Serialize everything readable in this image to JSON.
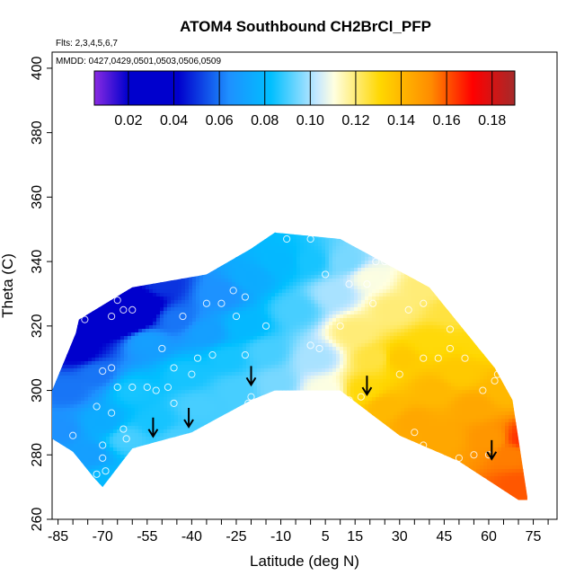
{
  "chart_data": {
    "type": "heatmap",
    "title": "ATOM4 Southbound CH2BrCl_PFP",
    "annotations": {
      "flights": "Flts: 2,3,4,5,6,7",
      "dates": "MMDD: 0427,0429,0501,0503,0506,0509"
    },
    "xlabel": "Latitude (deg N)",
    "ylabel": "Theta (C)",
    "xlim": [
      -87,
      83
    ],
    "ylim": [
      260,
      405
    ],
    "x_ticks": [
      -85,
      -70,
      -55,
      -40,
      -25,
      -10,
      5,
      15,
      30,
      45,
      60,
      75
    ],
    "x_minor_step": 5,
    "y_ticks": [
      260,
      280,
      300,
      320,
      340,
      360,
      380,
      400
    ],
    "colorbar": {
      "min": 0.005,
      "max": 0.19,
      "ticks": [
        0.02,
        0.04,
        0.06,
        0.08,
        0.1,
        0.12,
        0.14,
        0.16,
        0.18
      ],
      "tick_labels": [
        "0.02",
        "0.04",
        "0.06",
        "0.08",
        "0.10",
        "0.12",
        "0.14",
        "0.16",
        "0.18"
      ],
      "colors": [
        "#8a2be2",
        "#0000cd",
        "#0000cd",
        "#1e90ff",
        "#00bfff",
        "#c6e8ff",
        "#ffffe0",
        "#ffd700",
        "#ff8c00",
        "#ff0000",
        "#a52a2a"
      ],
      "color_stops": [
        0.0,
        0.08,
        0.2,
        0.32,
        0.42,
        0.53,
        0.57,
        0.68,
        0.8,
        0.9,
        1.0
      ]
    },
    "field_points": [
      {
        "lat": -80,
        "theta": 322,
        "value": 0.03
      },
      {
        "lat": -78,
        "theta": 312,
        "value": 0.04
      },
      {
        "lat": -82,
        "theta": 300,
        "value": 0.06
      },
      {
        "lat": -85,
        "theta": 288,
        "value": 0.065
      },
      {
        "lat": -75,
        "theta": 280,
        "value": 0.07
      },
      {
        "lat": -70,
        "theta": 272,
        "value": 0.08
      },
      {
        "lat": -70,
        "theta": 290,
        "value": 0.075
      },
      {
        "lat": -72,
        "theta": 305,
        "value": 0.06
      },
      {
        "lat": -70,
        "theta": 325,
        "value": 0.03
      },
      {
        "lat": -65,
        "theta": 330,
        "value": 0.04
      },
      {
        "lat": -62,
        "theta": 322,
        "value": 0.02
      },
      {
        "lat": -58,
        "theta": 326,
        "value": 0.02
      },
      {
        "lat": -55,
        "theta": 315,
        "value": 0.07
      },
      {
        "lat": -60,
        "theta": 300,
        "value": 0.085
      },
      {
        "lat": -62,
        "theta": 285,
        "value": 0.09
      },
      {
        "lat": -52,
        "theta": 290,
        "value": 0.085
      },
      {
        "lat": -45,
        "theta": 285,
        "value": 0.09
      },
      {
        "lat": -50,
        "theta": 333,
        "value": 0.05
      },
      {
        "lat": -45,
        "theta": 322,
        "value": 0.06
      },
      {
        "lat": -42,
        "theta": 305,
        "value": 0.085
      },
      {
        "lat": -38,
        "theta": 295,
        "value": 0.09
      },
      {
        "lat": -35,
        "theta": 318,
        "value": 0.07
      },
      {
        "lat": -30,
        "theta": 330,
        "value": 0.065
      },
      {
        "lat": -28,
        "theta": 310,
        "value": 0.085
      },
      {
        "lat": -25,
        "theta": 300,
        "value": 0.09
      },
      {
        "lat": -22,
        "theta": 320,
        "value": 0.08
      },
      {
        "lat": -20,
        "theta": 335,
        "value": 0.075
      },
      {
        "lat": -15,
        "theta": 312,
        "value": 0.09
      },
      {
        "lat": -12,
        "theta": 302,
        "value": 0.095
      },
      {
        "lat": -10,
        "theta": 340,
        "value": 0.08
      },
      {
        "lat": -5,
        "theta": 325,
        "value": 0.09
      },
      {
        "lat": 0,
        "theta": 340,
        "value": 0.085
      },
      {
        "lat": 2,
        "theta": 310,
        "value": 0.1
      },
      {
        "lat": 5,
        "theta": 300,
        "value": 0.11
      },
      {
        "lat": 8,
        "theta": 330,
        "value": 0.1
      },
      {
        "lat": 12,
        "theta": 340,
        "value": 0.095
      },
      {
        "lat": 15,
        "theta": 318,
        "value": 0.12
      },
      {
        "lat": 18,
        "theta": 300,
        "value": 0.13
      },
      {
        "lat": 20,
        "theta": 335,
        "value": 0.11
      },
      {
        "lat": 22,
        "theta": 310,
        "value": 0.125
      },
      {
        "lat": 25,
        "theta": 295,
        "value": 0.14
      },
      {
        "lat": 28,
        "theta": 325,
        "value": 0.12
      },
      {
        "lat": 30,
        "theta": 310,
        "value": 0.135
      },
      {
        "lat": 35,
        "theta": 290,
        "value": 0.145
      },
      {
        "lat": 38,
        "theta": 332,
        "value": 0.12
      },
      {
        "lat": 40,
        "theta": 315,
        "value": 0.13
      },
      {
        "lat": 42,
        "theta": 300,
        "value": 0.14
      },
      {
        "lat": 45,
        "theta": 285,
        "value": 0.145
      },
      {
        "lat": 48,
        "theta": 325,
        "value": 0.125
      },
      {
        "lat": 50,
        "theta": 305,
        "value": 0.135
      },
      {
        "lat": 55,
        "theta": 295,
        "value": 0.145
      },
      {
        "lat": 58,
        "theta": 315,
        "value": 0.13
      },
      {
        "lat": 60,
        "theta": 285,
        "value": 0.15
      },
      {
        "lat": 65,
        "theta": 300,
        "value": 0.14
      },
      {
        "lat": 68,
        "theta": 280,
        "value": 0.155
      },
      {
        "lat": 72,
        "theta": 285,
        "value": 0.165
      },
      {
        "lat": 70,
        "theta": 270,
        "value": 0.16
      }
    ],
    "samples": [
      {
        "lat": -80,
        "theta": 321
      },
      {
        "lat": -76,
        "theta": 322
      },
      {
        "lat": -67,
        "theta": 323
      },
      {
        "lat": -63,
        "theta": 325
      },
      {
        "lat": -60,
        "theta": 325
      },
      {
        "lat": -68,
        "theta": 331
      },
      {
        "lat": -65,
        "theta": 328
      },
      {
        "lat": -52,
        "theta": 337
      },
      {
        "lat": -70,
        "theta": 306
      },
      {
        "lat": -67,
        "theta": 307
      },
      {
        "lat": -60,
        "theta": 301
      },
      {
        "lat": -65,
        "theta": 301
      },
      {
        "lat": -72,
        "theta": 295
      },
      {
        "lat": -67,
        "theta": 293
      },
      {
        "lat": -63,
        "theta": 288
      },
      {
        "lat": -80,
        "theta": 286
      },
      {
        "lat": -70,
        "theta": 283
      },
      {
        "lat": -70,
        "theta": 279
      },
      {
        "lat": -72,
        "theta": 274
      },
      {
        "lat": -69,
        "theta": 275
      },
      {
        "lat": -62,
        "theta": 285
      },
      {
        "lat": -56,
        "theta": 281
      },
      {
        "lat": -50,
        "theta": 283
      },
      {
        "lat": -55,
        "theta": 301
      },
      {
        "lat": -52,
        "theta": 300
      },
      {
        "lat": -48,
        "theta": 301
      },
      {
        "lat": -46,
        "theta": 296
      },
      {
        "lat": -50,
        "theta": 313
      },
      {
        "lat": -46,
        "theta": 307
      },
      {
        "lat": -40,
        "theta": 305
      },
      {
        "lat": -43,
        "theta": 323
      },
      {
        "lat": -35,
        "theta": 327
      },
      {
        "lat": -30,
        "theta": 327
      },
      {
        "lat": -26,
        "theta": 331
      },
      {
        "lat": -25,
        "theta": 323
      },
      {
        "lat": -22,
        "theta": 329
      },
      {
        "lat": -38,
        "theta": 310
      },
      {
        "lat": -33,
        "theta": 311
      },
      {
        "lat": -22,
        "theta": 311
      },
      {
        "lat": -21,
        "theta": 296
      },
      {
        "lat": -20,
        "theta": 298
      },
      {
        "lat": -12,
        "theta": 298
      },
      {
        "lat": -15,
        "theta": 320
      },
      {
        "lat": -8,
        "theta": 347
      },
      {
        "lat": 0,
        "theta": 347
      },
      {
        "lat": 5,
        "theta": 336
      },
      {
        "lat": 13,
        "theta": 333
      },
      {
        "lat": 10,
        "theta": 320
      },
      {
        "lat": 0,
        "theta": 314
      },
      {
        "lat": 3,
        "theta": 313
      },
      {
        "lat": 18,
        "theta": 345
      },
      {
        "lat": 22,
        "theta": 340
      },
      {
        "lat": 25,
        "theta": 340
      },
      {
        "lat": 19,
        "theta": 333
      },
      {
        "lat": 21,
        "theta": 327
      },
      {
        "lat": 13,
        "theta": 297
      },
      {
        "lat": 17,
        "theta": 298
      },
      {
        "lat": 35,
        "theta": 340
      },
      {
        "lat": 33,
        "theta": 325
      },
      {
        "lat": 38,
        "theta": 327
      },
      {
        "lat": 45,
        "theta": 333
      },
      {
        "lat": 47,
        "theta": 319
      },
      {
        "lat": 30,
        "theta": 305
      },
      {
        "lat": 38,
        "theta": 310
      },
      {
        "lat": 43,
        "theta": 310
      },
      {
        "lat": 47,
        "theta": 313
      },
      {
        "lat": 52,
        "theta": 310
      },
      {
        "lat": 60,
        "theta": 317
      },
      {
        "lat": 63,
        "theta": 305
      },
      {
        "lat": 62,
        "theta": 303
      },
      {
        "lat": 58,
        "theta": 300
      },
      {
        "lat": 35,
        "theta": 287
      },
      {
        "lat": 38,
        "theta": 283
      },
      {
        "lat": 43,
        "theta": 279
      },
      {
        "lat": 50,
        "theta": 279
      },
      {
        "lat": 55,
        "theta": 280
      },
      {
        "lat": 72,
        "theta": 286
      },
      {
        "lat": 60,
        "theta": 280
      }
    ],
    "arrows": [
      {
        "lat": -53,
        "theta": 286
      },
      {
        "lat": -41,
        "theta": 289
      },
      {
        "lat": -20,
        "theta": 302
      },
      {
        "lat": 19,
        "theta": 299
      },
      {
        "lat": 61,
        "theta": 279
      }
    ]
  }
}
